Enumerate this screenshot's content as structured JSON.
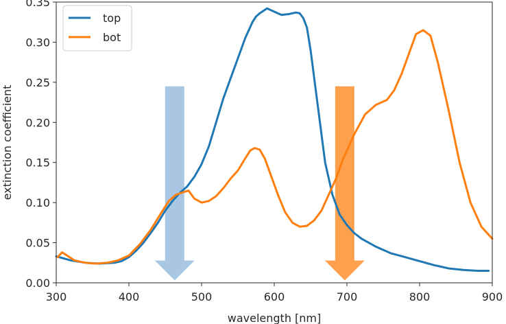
{
  "chart_data": {
    "type": "line",
    "title": "",
    "xlabel": "wavelength [nm]",
    "ylabel": "extinction coefficient",
    "xlim": [
      300,
      900
    ],
    "ylim": [
      0,
      0.35
    ],
    "xticks": [
      "300",
      "400",
      "500",
      "600",
      "700",
      "800",
      "900"
    ],
    "yticks": [
      "0.00",
      "0.05",
      "0.10",
      "0.15",
      "0.20",
      "0.25",
      "0.30",
      "0.35"
    ],
    "grid": false,
    "legend_position": "top-left",
    "series": [
      {
        "name": "top",
        "color": "#1f77b4",
        "x": [
          300,
          320,
          340,
          360,
          380,
          390,
          400,
          410,
          420,
          430,
          440,
          450,
          460,
          470,
          480,
          490,
          500,
          510,
          520,
          530,
          540,
          550,
          560,
          570,
          575,
          580,
          585,
          590,
          600,
          610,
          620,
          630,
          635,
          640,
          645,
          650,
          660,
          670,
          680,
          690,
          700,
          710,
          720,
          740,
          760,
          780,
          800,
          820,
          840,
          860,
          880,
          895
        ],
        "y": [
          0.033,
          0.028,
          0.025,
          0.024,
          0.025,
          0.027,
          0.032,
          0.04,
          0.05,
          0.062,
          0.075,
          0.09,
          0.102,
          0.112,
          0.12,
          0.132,
          0.148,
          0.17,
          0.2,
          0.23,
          0.255,
          0.28,
          0.305,
          0.325,
          0.332,
          0.336,
          0.339,
          0.342,
          0.338,
          0.334,
          0.335,
          0.337,
          0.336,
          0.33,
          0.318,
          0.29,
          0.22,
          0.15,
          0.11,
          0.085,
          0.072,
          0.062,
          0.055,
          0.045,
          0.037,
          0.032,
          0.027,
          0.022,
          0.018,
          0.016,
          0.015,
          0.015
        ]
      },
      {
        "name": "bot",
        "color": "#ff7f0e",
        "x": [
          302,
          308,
          315,
          325,
          340,
          355,
          370,
          385,
          400,
          415,
          430,
          445,
          455,
          465,
          475,
          482,
          490,
          500,
          510,
          520,
          530,
          540,
          550,
          560,
          567,
          573,
          580,
          587,
          595,
          605,
          615,
          625,
          635,
          645,
          655,
          665,
          675,
          685,
          695,
          710,
          725,
          740,
          755,
          765,
          775,
          785,
          795,
          805,
          815,
          825,
          840,
          855,
          870,
          885,
          900
        ],
        "y": [
          0.032,
          0.038,
          0.034,
          0.028,
          0.025,
          0.024,
          0.025,
          0.028,
          0.034,
          0.048,
          0.066,
          0.088,
          0.102,
          0.11,
          0.113,
          0.115,
          0.105,
          0.1,
          0.102,
          0.108,
          0.118,
          0.13,
          0.14,
          0.155,
          0.165,
          0.168,
          0.166,
          0.155,
          0.135,
          0.11,
          0.088,
          0.075,
          0.07,
          0.071,
          0.078,
          0.09,
          0.11,
          0.13,
          0.155,
          0.185,
          0.21,
          0.222,
          0.228,
          0.24,
          0.26,
          0.285,
          0.31,
          0.315,
          0.308,
          0.275,
          0.215,
          0.15,
          0.1,
          0.07,
          0.055
        ]
      }
    ],
    "annotations": [
      {
        "type": "arrow",
        "direction": "down",
        "x": 463,
        "y_from": 0.245,
        "y_to": 0.003,
        "color": "#a9c7e2"
      },
      {
        "type": "arrow",
        "direction": "down",
        "x": 697,
        "y_from": 0.245,
        "y_to": 0.003,
        "color": "#ffa04e"
      }
    ]
  }
}
